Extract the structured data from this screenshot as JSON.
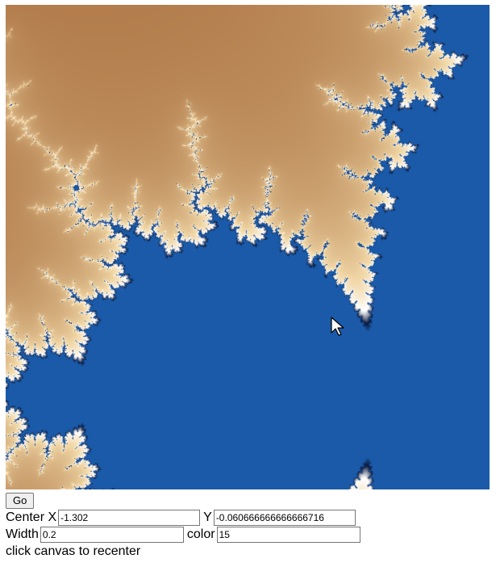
{
  "fractal": {
    "description_icon": "mandelbrot-canvas",
    "colors": {
      "interior": "#1a5aa8",
      "far_exterior": "#9a5a28",
      "near_exterior": "#f2d8a8",
      "edge_highlight": "#ffffff",
      "edge_dark": "#0a1a40"
    }
  },
  "controls": {
    "go_label": "Go",
    "center_x_label": "Center X",
    "center_x_value": "-1.302",
    "center_y_label": "Y",
    "center_y_value": "-0.060666666666666716",
    "width_label": "Width",
    "width_value": "0.2",
    "color_label": "color",
    "color_value": "15",
    "hint_text": "click canvas to recenter"
  }
}
